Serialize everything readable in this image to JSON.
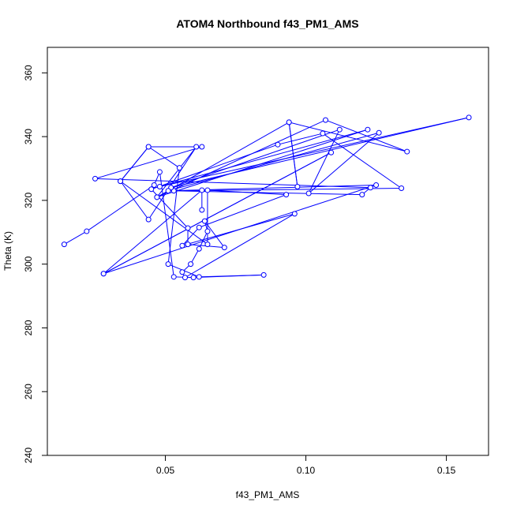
{
  "chart_data": {
    "type": "scatter",
    "title": "ATOM4 Northbound f43_PM1_AMS",
    "xlabel": "f43_PM1_AMS",
    "ylabel": "Theta (K)",
    "xlim": [
      0.008,
      0.165
    ],
    "ylim": [
      240,
      368
    ],
    "xticks": [
      "0.05",
      "0.10",
      "0.15"
    ],
    "xtick_values": [
      0.05,
      0.1,
      0.15
    ],
    "yticks": [
      "240",
      "260",
      "280",
      "300",
      "320",
      "340",
      "360"
    ],
    "ytick_values": [
      240,
      260,
      280,
      300,
      320,
      340,
      360
    ],
    "grid": false,
    "connected": true,
    "color": "#0000ff",
    "points": [
      [
        0.014,
        306.2
      ],
      [
        0.022,
        310.3
      ],
      [
        0.046,
        324.8
      ],
      [
        0.048,
        328.9
      ],
      [
        0.053,
        296.0
      ],
      [
        0.06,
        295.8
      ],
      [
        0.085,
        296.6
      ],
      [
        0.062,
        296.0
      ],
      [
        0.051,
        300.0
      ],
      [
        0.055,
        330.2
      ],
      [
        0.044,
        336.8
      ],
      [
        0.063,
        336.8
      ],
      [
        0.025,
        326.8
      ],
      [
        0.123,
        324.0
      ],
      [
        0.12,
        321.8
      ],
      [
        0.053,
        323.0
      ],
      [
        0.134,
        323.8
      ],
      [
        0.106,
        341.0
      ],
      [
        0.09,
        337.5
      ],
      [
        0.045,
        323.5
      ],
      [
        0.058,
        311.3
      ],
      [
        0.058,
        306.2
      ],
      [
        0.071,
        305.2
      ],
      [
        0.064,
        313.5
      ],
      [
        0.065,
        310.3
      ],
      [
        0.062,
        304.8
      ],
      [
        0.059,
        300.0
      ],
      [
        0.056,
        297.5
      ],
      [
        0.057,
        295.8
      ],
      [
        0.096,
        315.8
      ],
      [
        0.056,
        305.8
      ],
      [
        0.062,
        311.5
      ],
      [
        0.093,
        321.8
      ],
      [
        0.065,
        323.2
      ],
      [
        0.065,
        306.2
      ],
      [
        0.034,
        326.0
      ],
      [
        0.044,
        336.8
      ],
      [
        0.034,
        326.0
      ],
      [
        0.044,
        314.0
      ],
      [
        0.061,
        336.8
      ],
      [
        0.047,
        321.0
      ],
      [
        0.094,
        344.5
      ],
      [
        0.097,
        324.3
      ],
      [
        0.094,
        344.5
      ],
      [
        0.136,
        335.3
      ],
      [
        0.107,
        345.2
      ],
      [
        0.047,
        321.0
      ],
      [
        0.122,
        342.2
      ],
      [
        0.048,
        324.3
      ],
      [
        0.158,
        346.0
      ],
      [
        0.052,
        324.0
      ],
      [
        0.112,
        342.2
      ],
      [
        0.101,
        322.2
      ],
      [
        0.126,
        341.2
      ],
      [
        0.051,
        323.0
      ],
      [
        0.125,
        324.8
      ],
      [
        0.028,
        297.0
      ],
      [
        0.109,
        335.0
      ],
      [
        0.028,
        297.0
      ],
      [
        0.063,
        323.2
      ],
      [
        0.063,
        317.0
      ]
    ]
  }
}
